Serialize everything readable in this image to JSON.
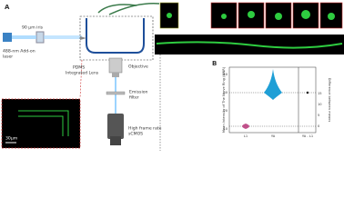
{
  "panel_a": {
    "label": "A",
    "iris": "90 µm iris",
    "laser": [
      "488-nm Add-on",
      "laser"
    ],
    "lens": [
      "PDMS",
      "Integrated Lens"
    ],
    "objective": "Objective",
    "filter": [
      "Emission",
      "filter"
    ],
    "camera": [
      "High frame rate",
      "sCMOS"
    ],
    "scale_bar": "30µm"
  },
  "panel_b": {
    "label": "B",
    "y_label": "Mean Intensity of The Nerve Ring (MNR)",
    "y2_label": "Difference between means",
    "yticks": [
      "10",
      "20",
      "30",
      "40"
    ],
    "y2ticks": [
      "0",
      "5",
      "10",
      "15"
    ],
    "categories": [
      "L1",
      "YA",
      "YA - L1"
    ]
  }
}
